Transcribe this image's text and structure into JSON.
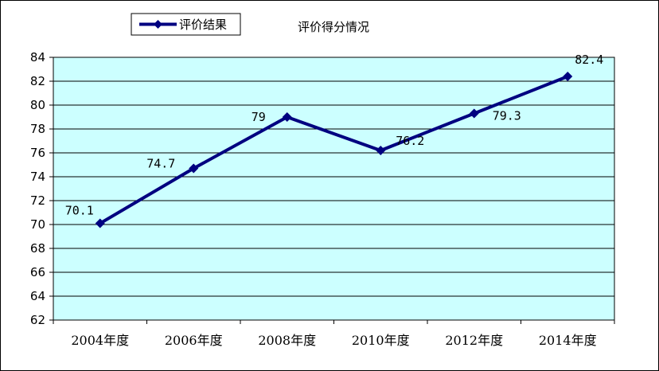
{
  "chart_data": {
    "type": "line",
    "title": "评价得分情况",
    "categories": [
      "2004年度",
      "2006年度",
      "2008年度",
      "2010年度",
      "2012年度",
      "2014年度"
    ],
    "series": [
      {
        "name": "评价结果",
        "values": [
          70.1,
          74.7,
          79,
          76.2,
          79.3,
          82.4
        ]
      }
    ],
    "data_labels": [
      "70.1",
      "74.7",
      "79",
      "76.2",
      "79.3",
      "82.4"
    ],
    "ylim": [
      62,
      84
    ],
    "yticks": [
      62,
      64,
      66,
      68,
      70,
      72,
      74,
      76,
      78,
      80,
      82,
      84
    ],
    "ytick_labels": [
      "62",
      "64",
      "66",
      "68",
      "70",
      "72",
      "74",
      "76",
      "78",
      "80",
      "82",
      "84"
    ],
    "grid": "horizontal",
    "legend_position": "top-left",
    "colors": {
      "plot_bg": "#ccffff",
      "line": "#000080",
      "grid": "#000000"
    }
  }
}
